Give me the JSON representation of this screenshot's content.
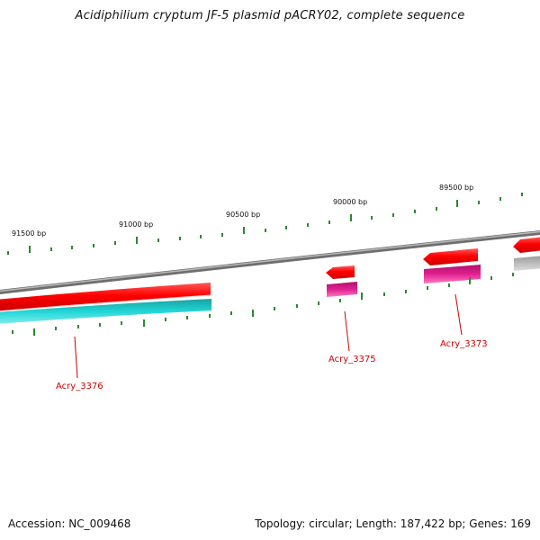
{
  "title": "Acidiphilium cryptum JF-5 plasmid pACRY02, complete sequence",
  "footer": {
    "accession_label": "Accession:",
    "accession": "NC_009468",
    "topology_label": "Topology:",
    "topology": "circular",
    "length_label": "Length:",
    "length": "187,422 bp",
    "genes_label": "Genes:",
    "genes": "169"
  },
  "ticks": [
    {
      "label": "91500 bp"
    },
    {
      "label": "91000 bp"
    },
    {
      "label": "90500 bp"
    },
    {
      "label": "90000 bp"
    },
    {
      "label": "89500 bp"
    }
  ],
  "genes": [
    {
      "label": "Acry_3376"
    },
    {
      "label": "Acry_3375"
    },
    {
      "label": "Acry_3373"
    }
  ],
  "colors": {
    "backbone": "#8a8a8a",
    "forward_cds": "#ff0000",
    "reverse_cds_cyan": "#10c8c8",
    "reverse_cds_magenta": "#e0208a",
    "tick": "#2a8a2a",
    "gene_label": "#cc0000"
  }
}
